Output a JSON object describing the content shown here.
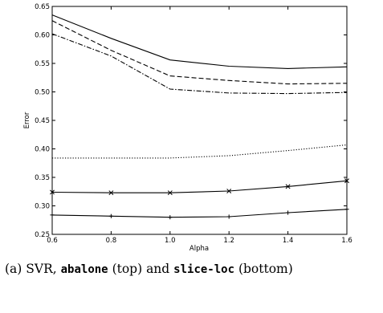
{
  "chart_data": {
    "type": "line",
    "xlabel": "Alpha",
    "ylabel": "Error",
    "xlim": [
      0.6,
      1.6
    ],
    "ylim": [
      0.25,
      0.65
    ],
    "xticks": [
      "0.6",
      "0.8",
      "1.0",
      "1.2",
      "1.4",
      "1.6"
    ],
    "yticks": [
      "0.25",
      "0.30",
      "0.35",
      "0.40",
      "0.45",
      "0.50",
      "0.55",
      "0.60",
      "0.65"
    ],
    "grid": false,
    "x": [
      0.6,
      0.8,
      1.0,
      1.2,
      1.4,
      1.6
    ],
    "series": [
      {
        "style": "solid",
        "marker": "none",
        "values": [
          0.635,
          0.594,
          0.556,
          0.545,
          0.541,
          0.544
        ]
      },
      {
        "style": "dashed",
        "marker": "none",
        "values": [
          0.625,
          0.573,
          0.528,
          0.52,
          0.514,
          0.515
        ]
      },
      {
        "style": "dashdot",
        "marker": "none",
        "values": [
          0.602,
          0.563,
          0.505,
          0.498,
          0.497,
          0.499
        ]
      },
      {
        "style": "dotted",
        "marker": "none",
        "values": [
          0.384,
          0.384,
          0.384,
          0.388,
          0.397,
          0.407
        ]
      },
      {
        "style": "solid",
        "marker": "x",
        "values": [
          0.324,
          0.323,
          0.323,
          0.326,
          0.334,
          0.344
        ]
      },
      {
        "style": "solid",
        "marker": "+",
        "values": [
          0.284,
          0.282,
          0.28,
          0.281,
          0.288,
          0.294
        ]
      }
    ]
  },
  "caption": {
    "prefix": "(a) SVR,",
    "dataset1": "abalone",
    "middle": "(top) and",
    "dataset2": "slice-loc",
    "suffix": "(bottom)"
  }
}
